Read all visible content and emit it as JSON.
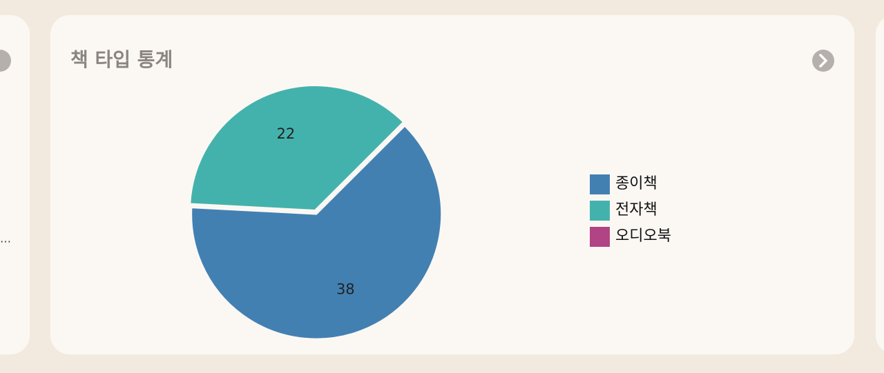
{
  "chart_data": {
    "type": "pie",
    "title": "책 타입 통계",
    "categories": [
      "종이책",
      "전자책",
      "오디오북"
    ],
    "values": [
      38,
      22,
      0
    ],
    "colors": [
      "#4380b2",
      "#44b2ac",
      "#b04484"
    ],
    "legend": "right"
  },
  "left_card": {
    "text": "…"
  }
}
